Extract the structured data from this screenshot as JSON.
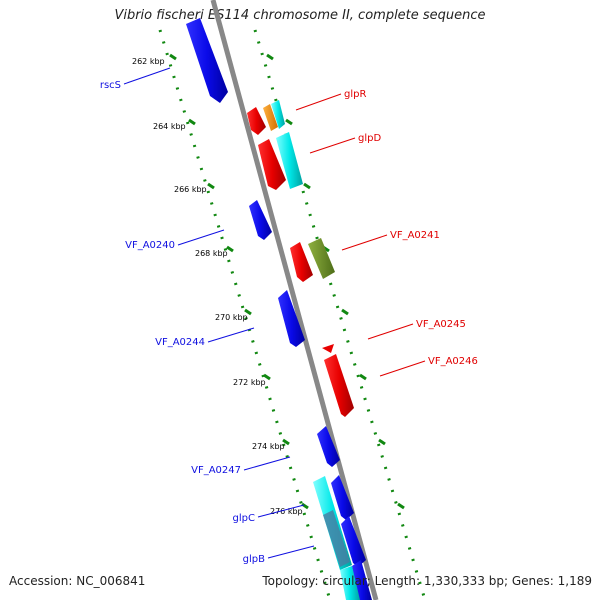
{
  "title": "Vibrio fischeri ES114 chromosome II, complete sequence",
  "footer": {
    "accession": "Accession: NC_006841",
    "summary": "Topology: circular; Length: 1,330,333 bp; Genes: 1,189"
  },
  "scale_labels": [
    "262 kbp",
    "264 kbp",
    "266 kbp",
    "268 kbp",
    "270 kbp",
    "272 kbp",
    "274 kbp",
    "276 kbp"
  ],
  "gene_labels_reverse": [
    "rscS",
    "VF_A0240",
    "VF_A0244",
    "VF_A0247",
    "glpC",
    "glpB"
  ],
  "gene_labels_forward": [
    "glpR",
    "glpD",
    "VF_A0241",
    "VF_A0245",
    "VF_A0246"
  ],
  "colors": {
    "reverse_gene": "#1010e0",
    "forward_gene": "#e00000",
    "cyan_gene": "#00e0e0",
    "orange_gene": "#f08000",
    "olive_gene": "#6b8e23",
    "backbone": "#888888",
    "tick": "#118811"
  }
}
